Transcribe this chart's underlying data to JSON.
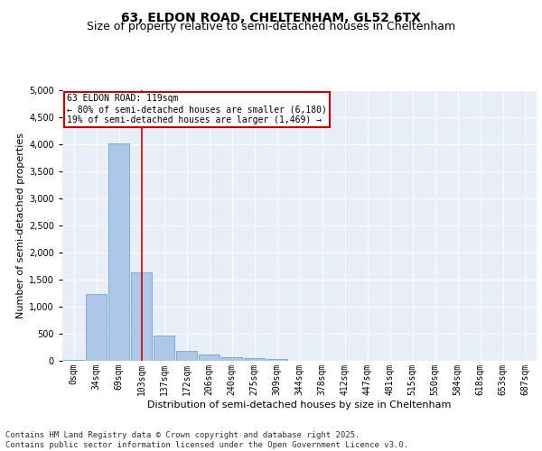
{
  "title_line1": "63, ELDON ROAD, CHELTENHAM, GL52 6TX",
  "title_line2": "Size of property relative to semi-detached houses in Cheltenham",
  "xlabel": "Distribution of semi-detached houses by size in Cheltenham",
  "ylabel": "Number of semi-detached properties",
  "bar_labels": [
    "0sqm",
    "34sqm",
    "69sqm",
    "103sqm",
    "137sqm",
    "172sqm",
    "206sqm",
    "240sqm",
    "275sqm",
    "309sqm",
    "344sqm",
    "378sqm",
    "412sqm",
    "447sqm",
    "481sqm",
    "515sqm",
    "550sqm",
    "584sqm",
    "618sqm",
    "653sqm",
    "687sqm"
  ],
  "bar_values": [
    20,
    1230,
    4020,
    1630,
    470,
    185,
    110,
    60,
    50,
    30,
    0,
    0,
    0,
    0,
    0,
    0,
    0,
    0,
    0,
    0,
    0
  ],
  "bar_color": "#aec6e8",
  "bar_edge_color": "#5a9fc8",
  "highlight_color": "#cc0000",
  "annotation_title": "63 ELDON ROAD: 119sqm",
  "annotation_line1": "← 80% of semi-detached houses are smaller (6,180)",
  "annotation_line2": "19% of semi-detached houses are larger (1,469) →",
  "annotation_box_color": "#cc0000",
  "ylim": [
    0,
    5000
  ],
  "yticks": [
    0,
    500,
    1000,
    1500,
    2000,
    2500,
    3000,
    3500,
    4000,
    4500,
    5000
  ],
  "background_color": "#e8eef8",
  "footer_line1": "Contains HM Land Registry data © Crown copyright and database right 2025.",
  "footer_line2": "Contains public sector information licensed under the Open Government Licence v3.0.",
  "title_fontsize": 10,
  "subtitle_fontsize": 9,
  "axis_label_fontsize": 8,
  "tick_fontsize": 7,
  "footer_fontsize": 6.5
}
